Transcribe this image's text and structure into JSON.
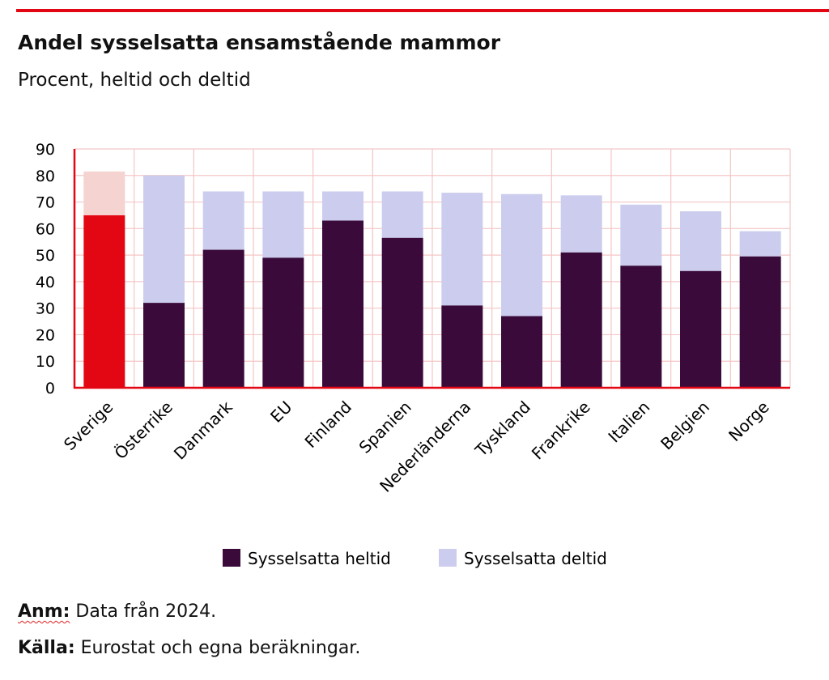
{
  "title": "Andel sysselsatta ensamstående mammor",
  "subtitle": "Procent, heltid och deltid",
  "colors": {
    "accent": "#e30613",
    "heltid": "#3a0b3a",
    "deltid": "#cccdee",
    "sverige_heltid": "#e30613",
    "sverige_deltid": "#f5d3d1",
    "grid": "#f4c6c6"
  },
  "chart_data": {
    "type": "bar",
    "stacked": true,
    "categories": [
      "Sverige",
      "Österrike",
      "Danmark",
      "EU",
      "Finland",
      "Spanien",
      "Nederländerna",
      "Tyskland",
      "Frankrike",
      "Italien",
      "Belgien",
      "Norge"
    ],
    "series": [
      {
        "name": "Sysselsatta heltid",
        "values": [
          65,
          32,
          52,
          49,
          63,
          56.5,
          31,
          27,
          51,
          46,
          44,
          49.5
        ]
      },
      {
        "name": "Sysselsatta deltid",
        "values": [
          16.5,
          48,
          22,
          25,
          11,
          17.5,
          42.5,
          46,
          21.5,
          23,
          22.5,
          9.5
        ]
      }
    ],
    "ylim": [
      0,
      90
    ],
    "yticks": [
      0,
      10,
      20,
      30,
      40,
      50,
      60,
      70,
      80,
      90
    ],
    "grid": true,
    "legend": "bottom"
  },
  "legend": {
    "heltid": "Sysselsatta heltid",
    "deltid": "Sysselsatta deltid"
  },
  "notes": {
    "anm_label": "Anm:",
    "anm_text": " Data från 2024.",
    "kalla_label": "Källa:",
    "kalla_text": " Eurostat och egna beräkningar."
  }
}
